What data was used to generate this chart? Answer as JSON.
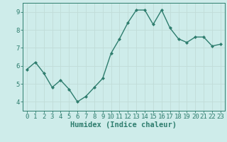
{
  "x": [
    0,
    1,
    2,
    3,
    4,
    5,
    6,
    7,
    8,
    9,
    10,
    11,
    12,
    13,
    14,
    15,
    16,
    17,
    18,
    19,
    20,
    21,
    22,
    23
  ],
  "y": [
    5.8,
    6.2,
    5.6,
    4.8,
    5.2,
    4.7,
    4.0,
    4.3,
    4.8,
    5.3,
    6.7,
    7.5,
    8.4,
    9.1,
    9.1,
    8.3,
    9.1,
    8.1,
    7.5,
    7.3,
    7.6,
    7.6,
    7.1,
    7.2
  ],
  "line_color": "#2e7d6e",
  "marker": "D",
  "marker_size": 2.0,
  "bg_color": "#ceecea",
  "grid_color": "#c0dcd8",
  "xlabel": "Humidex (Indice chaleur)",
  "xlim": [
    -0.5,
    23.5
  ],
  "ylim": [
    3.5,
    9.5
  ],
  "yticks": [
    4,
    5,
    6,
    7,
    8,
    9
  ],
  "xtick_labels": [
    "0",
    "1",
    "2",
    "3",
    "4",
    "5",
    "6",
    "7",
    "8",
    "9",
    "10",
    "11",
    "12",
    "13",
    "14",
    "15",
    "16",
    "17",
    "18",
    "19",
    "20",
    "21",
    "22",
    "23"
  ],
  "xlabel_fontsize": 7.5,
  "tick_fontsize": 6.5,
  "line_width": 1.0
}
